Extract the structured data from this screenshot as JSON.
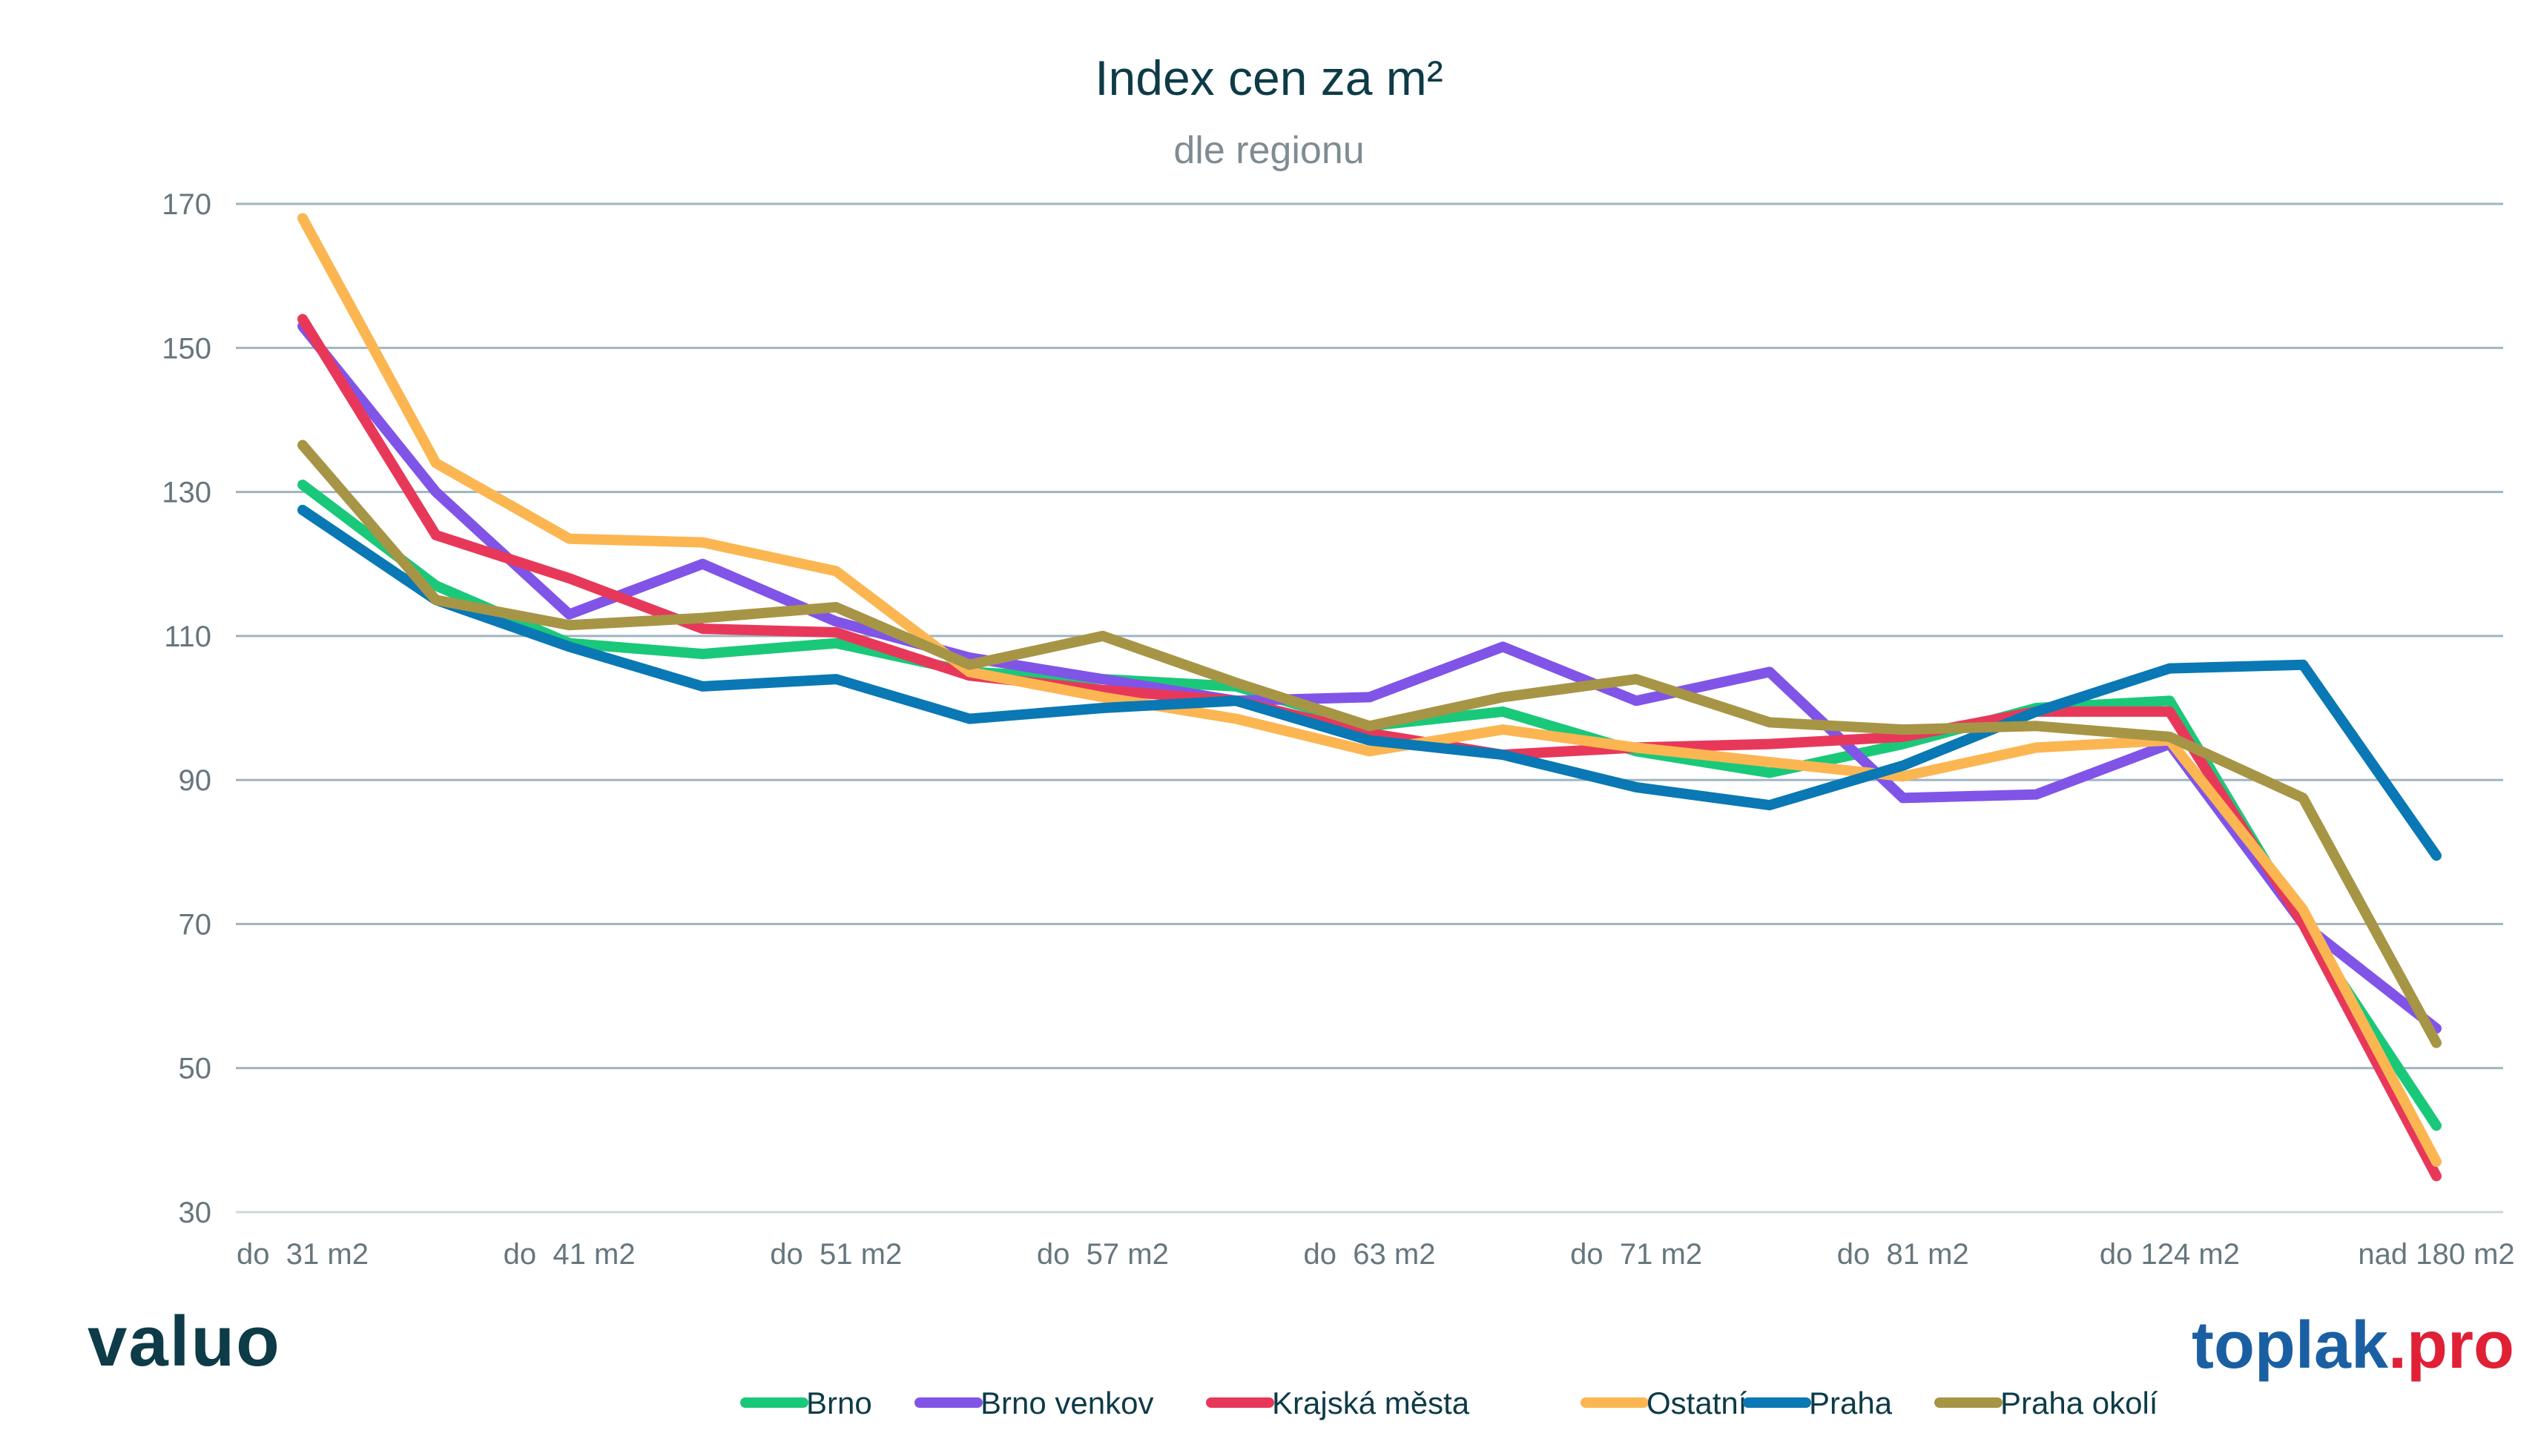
{
  "chart_data": {
    "type": "line",
    "title": "Index cen za m²",
    "subtitle": "dle regionu",
    "ylim": [
      30,
      170
    ],
    "yticks": [
      30,
      50,
      70,
      90,
      110,
      130,
      150,
      170
    ],
    "grid": true,
    "legend_position": "bottom",
    "categories": [
      "do 31 m2",
      "",
      "do 41 m2",
      "",
      "do 51 m2",
      "",
      "do 57 m2",
      "",
      "do 63 m2",
      "",
      "do 71 m2",
      "",
      "do 81 m2",
      "",
      "do 124 m2",
      "",
      "nad 180 m2"
    ],
    "tick_labels": [
      "do  31 m2",
      "do  41 m2",
      "do  51 m2",
      "do  57 m2",
      "do  63 m2",
      "do  71 m2",
      "do  81 m2",
      "do 124 m2",
      "nad 180 m2"
    ],
    "series": [
      {
        "name": "Brno",
        "color": "#1ac87a",
        "values": [
          131,
          117,
          109,
          107.5,
          109,
          105,
          104,
          103,
          97.5,
          99.5,
          94,
          91,
          95,
          100,
          101,
          70,
          42
        ]
      },
      {
        "name": "Brno venkov",
        "color": "#8154e8",
        "values": [
          153,
          130,
          113,
          120,
          112,
          107,
          104,
          101,
          101.5,
          108.5,
          101,
          105,
          87.5,
          88,
          95,
          70,
          55.5
        ]
      },
      {
        "name": "Krajská města",
        "color": "#e8385a",
        "values": [
          154,
          124,
          118,
          111,
          110.5,
          104.5,
          102.5,
          101,
          96.5,
          93.5,
          94.5,
          95,
          96,
          99.5,
          99.5,
          70,
          35
        ]
      },
      {
        "name": "Ostatní",
        "color": "#fbb652",
        "values": [
          168,
          134,
          123.5,
          123,
          119,
          105,
          101.5,
          98.5,
          94,
          97,
          94.5,
          92.5,
          90.5,
          94.5,
          95.5,
          72,
          37
        ]
      },
      {
        "name": "Praha",
        "color": "#0a78b4",
        "values": [
          127.5,
          115,
          108.5,
          103,
          104,
          98.5,
          100,
          101,
          95.5,
          93.5,
          89,
          86.5,
          92,
          99.5,
          105.5,
          106,
          79.5
        ]
      },
      {
        "name": "Praha okolí",
        "color": "#a79546",
        "values": [
          136.5,
          115,
          111.5,
          112.5,
          114,
          106,
          110,
          103.5,
          97.5,
          101.5,
          104,
          98,
          97,
          97.5,
          96,
          87.5,
          53.5
        ]
      }
    ]
  },
  "logos": {
    "left": "valuo",
    "right_main": "toplak",
    "right_suffix": ".pro",
    "right_main_color": "#1b5fa3",
    "right_suffix_color": "#e02035"
  }
}
